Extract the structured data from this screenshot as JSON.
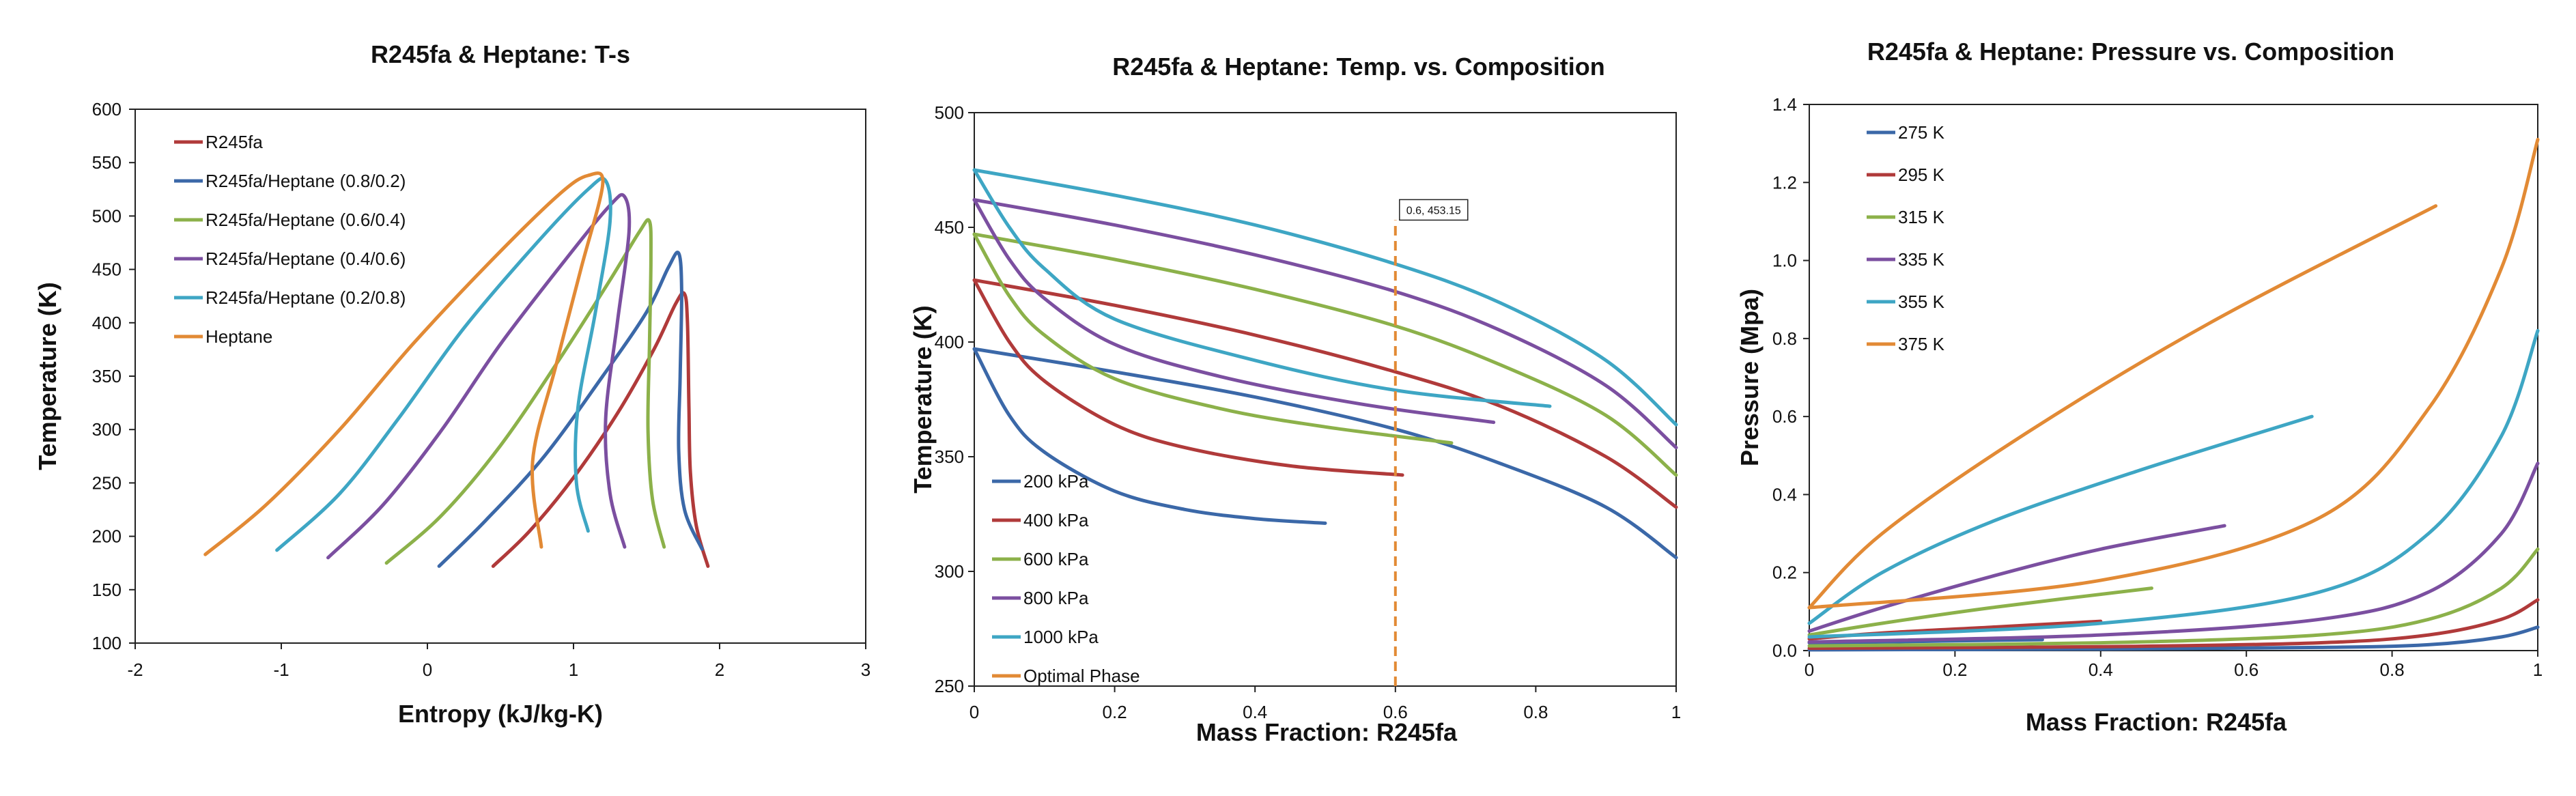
{
  "chart_data": [
    {
      "type": "line",
      "title": "R245fa & Heptane: T-s",
      "xlabel": "Entropy (kJ/kg-K)",
      "ylabel": "Temperature (K)",
      "xlim": [
        -2,
        3
      ],
      "ylim": [
        100,
        600
      ],
      "xticks": [
        "-2",
        "-1",
        "0",
        "1",
        "2",
        "3"
      ],
      "yticks": [
        "100",
        "150",
        "200",
        "250",
        "300",
        "350",
        "400",
        "450",
        "500",
        "550",
        "600"
      ],
      "legend_position": "top-left",
      "grid": false,
      "series": [
        {
          "name": "R245fa",
          "color": "#b03a3a",
          "x": [
            0.45,
            0.7,
            1.0,
            1.3,
            1.55,
            1.7,
            1.76,
            1.78,
            1.79,
            1.8,
            1.84,
            1.92
          ],
          "y": [
            172,
            205,
            255,
            315,
            375,
            418,
            427,
            400,
            320,
            260,
            210,
            172
          ]
        },
        {
          "name": "R245fa/Heptane (0.8/0.2)",
          "color": "#3b68a8",
          "x": [
            0.08,
            0.4,
            0.8,
            1.2,
            1.5,
            1.65,
            1.72,
            1.74,
            1.73,
            1.72,
            1.76,
            1.88
          ],
          "y": [
            172,
            215,
            275,
            350,
            410,
            452,
            465,
            430,
            350,
            280,
            225,
            188
          ]
        },
        {
          "name": "R245fa/Heptane (0.6/0.4)",
          "color": "#8cb14a",
          "x": [
            -0.28,
            0.1,
            0.5,
            0.9,
            1.25,
            1.45,
            1.52,
            1.53,
            1.52,
            1.51,
            1.54,
            1.62
          ],
          "y": [
            175,
            220,
            285,
            365,
            440,
            485,
            495,
            460,
            380,
            300,
            235,
            190
          ]
        },
        {
          "name": "R245fa/Heptane (0.4/0.6)",
          "color": "#7b4fa0",
          "x": [
            -0.68,
            -0.3,
            0.1,
            0.5,
            0.95,
            1.25,
            1.35,
            1.38,
            1.3,
            1.22,
            1.25,
            1.35
          ],
          "y": [
            180,
            230,
            300,
            380,
            460,
            510,
            518,
            485,
            400,
            310,
            240,
            190
          ]
        },
        {
          "name": "R245fa/Heptane (0.2/0.8)",
          "color": "#3ea6c4",
          "x": [
            -1.03,
            -0.6,
            -0.2,
            0.25,
            0.75,
            1.1,
            1.22,
            1.25,
            1.15,
            1.03,
            1.02,
            1.1
          ],
          "y": [
            187,
            240,
            310,
            395,
            475,
            525,
            533,
            495,
            410,
            320,
            250,
            205
          ]
        },
        {
          "name": "Heptane",
          "color": "#e28a35",
          "x": [
            -1.52,
            -1.1,
            -0.6,
            -0.1,
            0.45,
            0.9,
            1.1,
            1.2,
            1.05,
            0.88,
            0.72,
            0.78
          ],
          "y": [
            183,
            230,
            300,
            380,
            460,
            520,
            538,
            530,
            450,
            360,
            270,
            190
          ]
        }
      ]
    },
    {
      "type": "line",
      "title": "R245fa & Heptane: Temp. vs. Composition",
      "xlabel": "Mass Fraction: R245fa",
      "ylabel": "Temperature (K)",
      "xlim": [
        0,
        1
      ],
      "ylim": [
        250,
        500
      ],
      "xticks": [
        "0",
        "0.2",
        "0.4",
        "0.6",
        "0.8",
        "1"
      ],
      "yticks": [
        "250",
        "300",
        "350",
        "400",
        "450",
        "500"
      ],
      "legend_position": "bottom-left",
      "grid": false,
      "annotation": {
        "text": "0.6, 453.15",
        "x": 0.6,
        "y": 453.15
      },
      "series": [
        {
          "name": "200 kPa",
          "color": "#3b68a8",
          "upper": {
            "x": [
              0,
              0.2,
              0.4,
              0.6,
              0.75,
              0.9,
              1.0
            ],
            "y": [
              397,
              387,
              376,
              362,
              347,
              328,
              306
            ]
          },
          "lower": {
            "x": [
              0,
              0.05,
              0.1,
              0.2,
              0.3,
              0.4,
              0.5
            ],
            "y": [
              397,
              368,
              352,
              335,
              327,
              323,
              321
            ]
          }
        },
        {
          "name": "400 kPa",
          "color": "#b03a3a",
          "upper": {
            "x": [
              0,
              0.2,
              0.4,
              0.6,
              0.75,
              0.9,
              1.0
            ],
            "y": [
              427,
              416,
              403,
              387,
              372,
              350,
              328
            ]
          },
          "lower": {
            "x": [
              0,
              0.05,
              0.1,
              0.2,
              0.3,
              0.45,
              0.61
            ],
            "y": [
              427,
              400,
              383,
              364,
              354,
              346,
              342
            ]
          }
        },
        {
          "name": "600 kPa",
          "color": "#8cb14a",
          "upper": {
            "x": [
              0,
              0.2,
              0.4,
              0.6,
              0.75,
              0.9,
              1.0
            ],
            "y": [
              447,
              436,
              423,
              407,
              390,
              368,
              342
            ]
          },
          "lower": {
            "x": [
              0,
              0.05,
              0.1,
              0.2,
              0.35,
              0.5,
              0.68
            ],
            "y": [
              447,
              420,
              403,
              384,
              371,
              363,
              356
            ]
          }
        },
        {
          "name": "800 kPa",
          "color": "#7b4fa0",
          "upper": {
            "x": [
              0,
              0.2,
              0.4,
              0.6,
              0.75,
              0.9,
              1.0
            ],
            "y": [
              462,
              451,
              438,
              422,
              405,
              381,
              354
            ]
          },
          "lower": {
            "x": [
              0,
              0.05,
              0.1,
              0.2,
              0.35,
              0.55,
              0.74
            ],
            "y": [
              462,
              436,
              419,
              399,
              385,
              373,
              365
            ]
          }
        },
        {
          "name": "1000 kPa",
          "color": "#3ea6c4",
          "upper": {
            "x": [
              0,
              0.2,
              0.4,
              0.6,
              0.75,
              0.9,
              1.0
            ],
            "y": [
              475,
              464,
              451,
              434,
              417,
              392,
              364
            ]
          },
          "lower": {
            "x": [
              0,
              0.05,
              0.1,
              0.2,
              0.4,
              0.6,
              0.82
            ],
            "y": [
              475,
              450,
              432,
              410,
              392,
              379,
              372
            ]
          }
        },
        {
          "name": "Optimal Phase",
          "color": "#e28a35",
          "dashed": true,
          "x": [
            0.6,
            0.6
          ],
          "y": [
            250,
            453.15
          ]
        }
      ]
    },
    {
      "type": "line",
      "title": "R245fa & Heptane: Pressure vs. Composition",
      "xlabel": "Mass Fraction: R245fa",
      "ylabel": "Pressure (Mpa)",
      "xlim": [
        0,
        1
      ],
      "ylim": [
        0,
        1.4
      ],
      "xticks": [
        "0",
        "0.2",
        "0.4",
        "0.6",
        "0.8",
        "1"
      ],
      "yticks": [
        "0.0",
        "0.2",
        "0.4",
        "0.6",
        "0.8",
        "1.0",
        "1.2",
        "1.4"
      ],
      "legend_position": "top-left",
      "grid": false,
      "series": [
        {
          "name": "275 K",
          "color": "#3b68a8",
          "upper": {
            "x": [
              0,
              0.4,
              0.7,
              0.85,
              0.95,
              1.0
            ],
            "y": [
              0.002,
              0.004,
              0.008,
              0.015,
              0.035,
              0.06
            ]
          },
          "lower": {
            "x": [
              0,
              0.1,
              0.2,
              0.32
            ],
            "y": [
              0.02,
              0.022,
              0.025,
              0.028
            ]
          }
        },
        {
          "name": "295 K",
          "color": "#b03a3a",
          "upper": {
            "x": [
              0,
              0.4,
              0.7,
              0.85,
              0.95,
              1.0
            ],
            "y": [
              0.006,
              0.01,
              0.02,
              0.04,
              0.08,
              0.13
            ]
          },
          "lower": {
            "x": [
              0,
              0.1,
              0.25,
              0.4
            ],
            "y": [
              0.03,
              0.045,
              0.06,
              0.075
            ]
          }
        },
        {
          "name": "315 K",
          "color": "#8cb14a",
          "upper": {
            "x": [
              0,
              0.4,
              0.7,
              0.85,
              0.95,
              1.0
            ],
            "y": [
              0.012,
              0.02,
              0.04,
              0.08,
              0.16,
              0.26
            ]
          },
          "lower": {
            "x": [
              0,
              0.1,
              0.25,
              0.47
            ],
            "y": [
              0.04,
              0.07,
              0.11,
              0.16
            ]
          }
        },
        {
          "name": "335 K",
          "color": "#7b4fa0",
          "upper": {
            "x": [
              0,
              0.4,
              0.7,
              0.85,
              0.95,
              1.0
            ],
            "y": [
              0.022,
              0.04,
              0.08,
              0.15,
              0.3,
              0.48
            ]
          },
          "lower": {
            "x": [
              0,
              0.1,
              0.25,
              0.4,
              0.57
            ],
            "y": [
              0.05,
              0.11,
              0.19,
              0.26,
              0.32
            ]
          }
        },
        {
          "name": "355 K",
          "color": "#3ea6c4",
          "upper": {
            "x": [
              0,
              0.4,
              0.7,
              0.85,
              0.95,
              1.0
            ],
            "y": [
              0.035,
              0.07,
              0.15,
              0.3,
              0.55,
              0.82
            ]
          },
          "lower": {
            "x": [
              0,
              0.1,
              0.25,
              0.45,
              0.69
            ],
            "y": [
              0.07,
              0.2,
              0.33,
              0.46,
              0.6
            ]
          }
        },
        {
          "name": "375 K",
          "color": "#e28a35",
          "upper": {
            "x": [
              0,
              0.4,
              0.7,
              0.85,
              0.95,
              1.0
            ],
            "y": [
              0.11,
              0.18,
              0.34,
              0.62,
              0.98,
              1.31
            ]
          },
          "lower": {
            "x": [
              0,
              0.1,
              0.3,
              0.55,
              0.86
            ],
            "y": [
              0.11,
              0.3,
              0.56,
              0.84,
              1.14
            ]
          }
        }
      ]
    }
  ]
}
